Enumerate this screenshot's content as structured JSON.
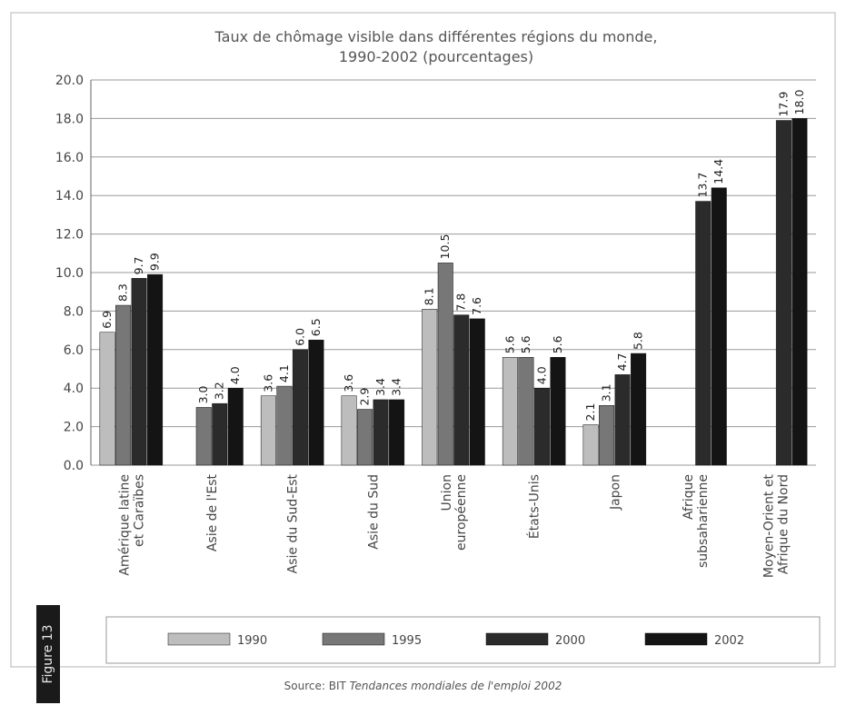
{
  "figure_label": "Figure 13",
  "source": {
    "prefix": "Source: BIT",
    "title": "Tendances mondiales de l'emploi 2002"
  },
  "colors": {
    "1990": "#bdbdbd",
    "1995": "#777777",
    "2000": "#2b2b2b",
    "2002": "#141414",
    "grid": "#9a9a9a",
    "text": "#444444"
  },
  "chart_data": {
    "type": "bar",
    "title": "Taux de chômage visible dans différentes régions du monde,",
    "subtitle": "1990-2002 (pourcentages)",
    "xlabel": "",
    "ylabel": "",
    "ylim": [
      0,
      20
    ],
    "yticks": [
      "0.0",
      "2.0",
      "4.0",
      "6.0",
      "8.0",
      "10.0",
      "12.0",
      "14.0",
      "16.0",
      "18.0",
      "20.0"
    ],
    "grid": true,
    "legend_position": "bottom",
    "categories": [
      [
        "Amérique latine",
        "et Caraïbes"
      ],
      [
        "Asie de l'Est"
      ],
      [
        "Asie du Sud-Est"
      ],
      [
        "Asie du Sud"
      ],
      [
        "Union",
        "européenne"
      ],
      [
        "États-Unis"
      ],
      [
        "Japon"
      ],
      [
        "Afrique",
        "subsaharienne"
      ],
      [
        "Moyen-Orient et",
        "Afrique du Nord"
      ]
    ],
    "series": [
      {
        "name": "1990",
        "values": [
          6.9,
          null,
          3.6,
          3.6,
          8.1,
          5.6,
          2.1,
          null,
          null
        ],
        "labels": [
          "6.9",
          "",
          "3.6",
          "3.6",
          "8.1",
          "5.6",
          "2.1",
          "",
          ""
        ]
      },
      {
        "name": "1995",
        "values": [
          8.3,
          3.0,
          4.1,
          2.9,
          10.5,
          5.6,
          3.1,
          null,
          null
        ],
        "labels": [
          "8.3",
          "3.0",
          "4.1",
          "2.9",
          "10.5",
          "5.6",
          "3.1",
          "",
          ""
        ]
      },
      {
        "name": "2000",
        "values": [
          9.7,
          3.2,
          6.0,
          3.4,
          7.8,
          4.0,
          4.7,
          13.7,
          17.9
        ],
        "labels": [
          "9.7",
          "3.2",
          "6.0",
          "3.4",
          "7.8",
          "4.0",
          "4.7",
          "13.7",
          "17.9"
        ]
      },
      {
        "name": "2002",
        "values": [
          9.9,
          4.0,
          6.5,
          3.4,
          7.6,
          5.6,
          5.8,
          14.4,
          18.0
        ],
        "labels": [
          "9.9",
          "4.0",
          "6.5",
          "3.4",
          "7.6",
          "5.6",
          "5.8",
          "14.4",
          "18.0"
        ]
      }
    ]
  }
}
